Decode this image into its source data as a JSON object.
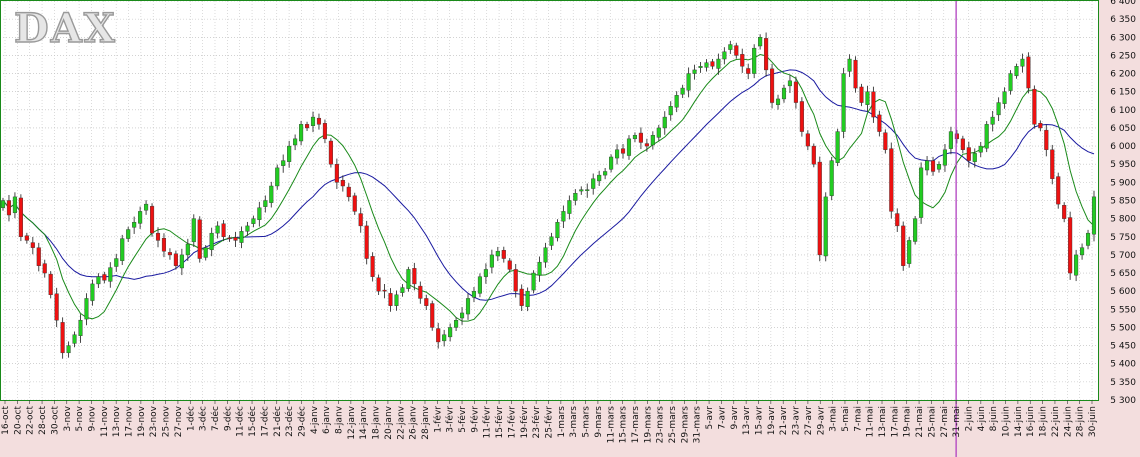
{
  "chart_data": {
    "type": "candlestick",
    "title": "DAX",
    "y_ticks": [
      5300,
      5350,
      5400,
      5450,
      5500,
      5550,
      5600,
      5650,
      5700,
      5750,
      5800,
      5850,
      5900,
      5950,
      6000,
      6050,
      6100,
      6150,
      6200,
      6250,
      6300,
      6350,
      6400
    ],
    "y_tick_labels": [
      "5 300",
      "5 350",
      "5 400",
      "5 450",
      "5 500",
      "5 550",
      "5 600",
      "5 650",
      "5 700",
      "5 750",
      "5 800",
      "5 850",
      "5 900",
      "5 950",
      "6 000",
      "6 050",
      "6 100",
      "6 150",
      "6 200",
      "6 250",
      "6 300",
      "6 350",
      "6 400"
    ],
    "ylim": [
      5300,
      6400
    ],
    "grid": true,
    "x_tick_labels": [
      "16-oct",
      "20-oct",
      "22-oct",
      "28-oct",
      "30-oct",
      "3-nov",
      "5-nov",
      "9-nov",
      "11-nov",
      "13-nov",
      "17-nov",
      "19-nov",
      "23-nov",
      "25-nov",
      "27-nov",
      "1-déc",
      "3-déc",
      "7-déc",
      "9-déc",
      "11-déc",
      "15-déc",
      "17-déc",
      "21-déc",
      "23-déc",
      "29-déc",
      "4-janv",
      "6-janv",
      "8-janv",
      "12-janv",
      "14-janv",
      "18-janv",
      "20-janv",
      "22-janv",
      "26-janv",
      "28-janv",
      "1-févr",
      "3-févr",
      "5-févr",
      "9-févr",
      "11-févr",
      "15-févr",
      "17-févr",
      "19-févr",
      "23-févr",
      "25-févr",
      "1-mars",
      "3-mars",
      "5-mars",
      "9-mars",
      "11-mars",
      "15-mars",
      "17-mars",
      "19-mars",
      "23-mars",
      "25-mars",
      "29-mars",
      "31-mars",
      "5-avr",
      "7-avr",
      "9-avr",
      "13-avr",
      "15-avr",
      "19-avr",
      "21-avr",
      "23-avr",
      "27-avr",
      "29-avr",
      "3-mai",
      "5-mai",
      "7-mai",
      "11-mai",
      "13-mai",
      "17-mai",
      "19-mai",
      "21-mai",
      "25-mai",
      "27-mai",
      "31-mai",
      "2-juin",
      "4-juin",
      "8-juin",
      "10-juin",
      "14-juin",
      "16-juin",
      "18-juin",
      "22-juin",
      "24-juin",
      "28-juin",
      "30-juin"
    ],
    "highlight_date": "31-mai",
    "colors": {
      "up": "#22cc22",
      "down": "#ee1111",
      "short_ma": "#1a8a1a",
      "long_ma": "#1a1aa0",
      "marker": "#b040c0",
      "frame": "#1a8a1a"
    },
    "closes": [
      5850,
      5810,
      5860,
      5750,
      5740,
      5720,
      5670,
      5650,
      5590,
      5520,
      5430,
      5450,
      5480,
      5520,
      5580,
      5620,
      5640,
      5630,
      5665,
      5690,
      5745,
      5770,
      5790,
      5820,
      5840,
      5760,
      5740,
      5710,
      5700,
      5670,
      5700,
      5730,
      5800,
      5690,
      5720,
      5760,
      5780,
      5750,
      5745,
      5740,
      5765,
      5780,
      5800,
      5830,
      5850,
      5890,
      5940,
      5960,
      6000,
      6020,
      6060,
      6050,
      6080,
      6060,
      6020,
      5950,
      5900,
      5890,
      5860,
      5820,
      5780,
      5690,
      5640,
      5600,
      5600,
      5560,
      5590,
      5610,
      5660,
      5620,
      5580,
      5560,
      5500,
      5460,
      5480,
      5500,
      5520,
      5540,
      5580,
      5600,
      5640,
      5660,
      5700,
      5710,
      5690,
      5660,
      5600,
      5560,
      5600,
      5650,
      5680,
      5720,
      5750,
      5790,
      5820,
      5850,
      5870,
      5880,
      5880,
      5910,
      5920,
      5930,
      5970,
      5990,
      5980,
      6020,
      6030,
      6010,
      6000,
      6030,
      6050,
      6080,
      6110,
      6140,
      6160,
      6200,
      6210,
      6220,
      6230,
      6220,
      6240,
      6260,
      6280,
      6250,
      6220,
      6200,
      6270,
      6300,
      6210,
      6120,
      6130,
      6160,
      6180,
      6120,
      6040,
      6000,
      5950,
      5700,
      5860,
      5960,
      6040,
      6200,
      6240,
      6160,
      6120,
      6150,
      6080,
      6040,
      5990,
      5820,
      5780,
      5670,
      5740,
      5800,
      5940,
      5960,
      5930,
      5950,
      5990,
      6040,
      6020,
      5990,
      5960,
      5980,
      6000,
      6060,
      6080,
      6120,
      6150,
      6200,
      6220,
      6240,
      6160,
      6060,
      6050,
      5990,
      5910,
      5840,
      5800,
      5650,
      5700,
      5720,
      5760,
      5860
    ]
  }
}
